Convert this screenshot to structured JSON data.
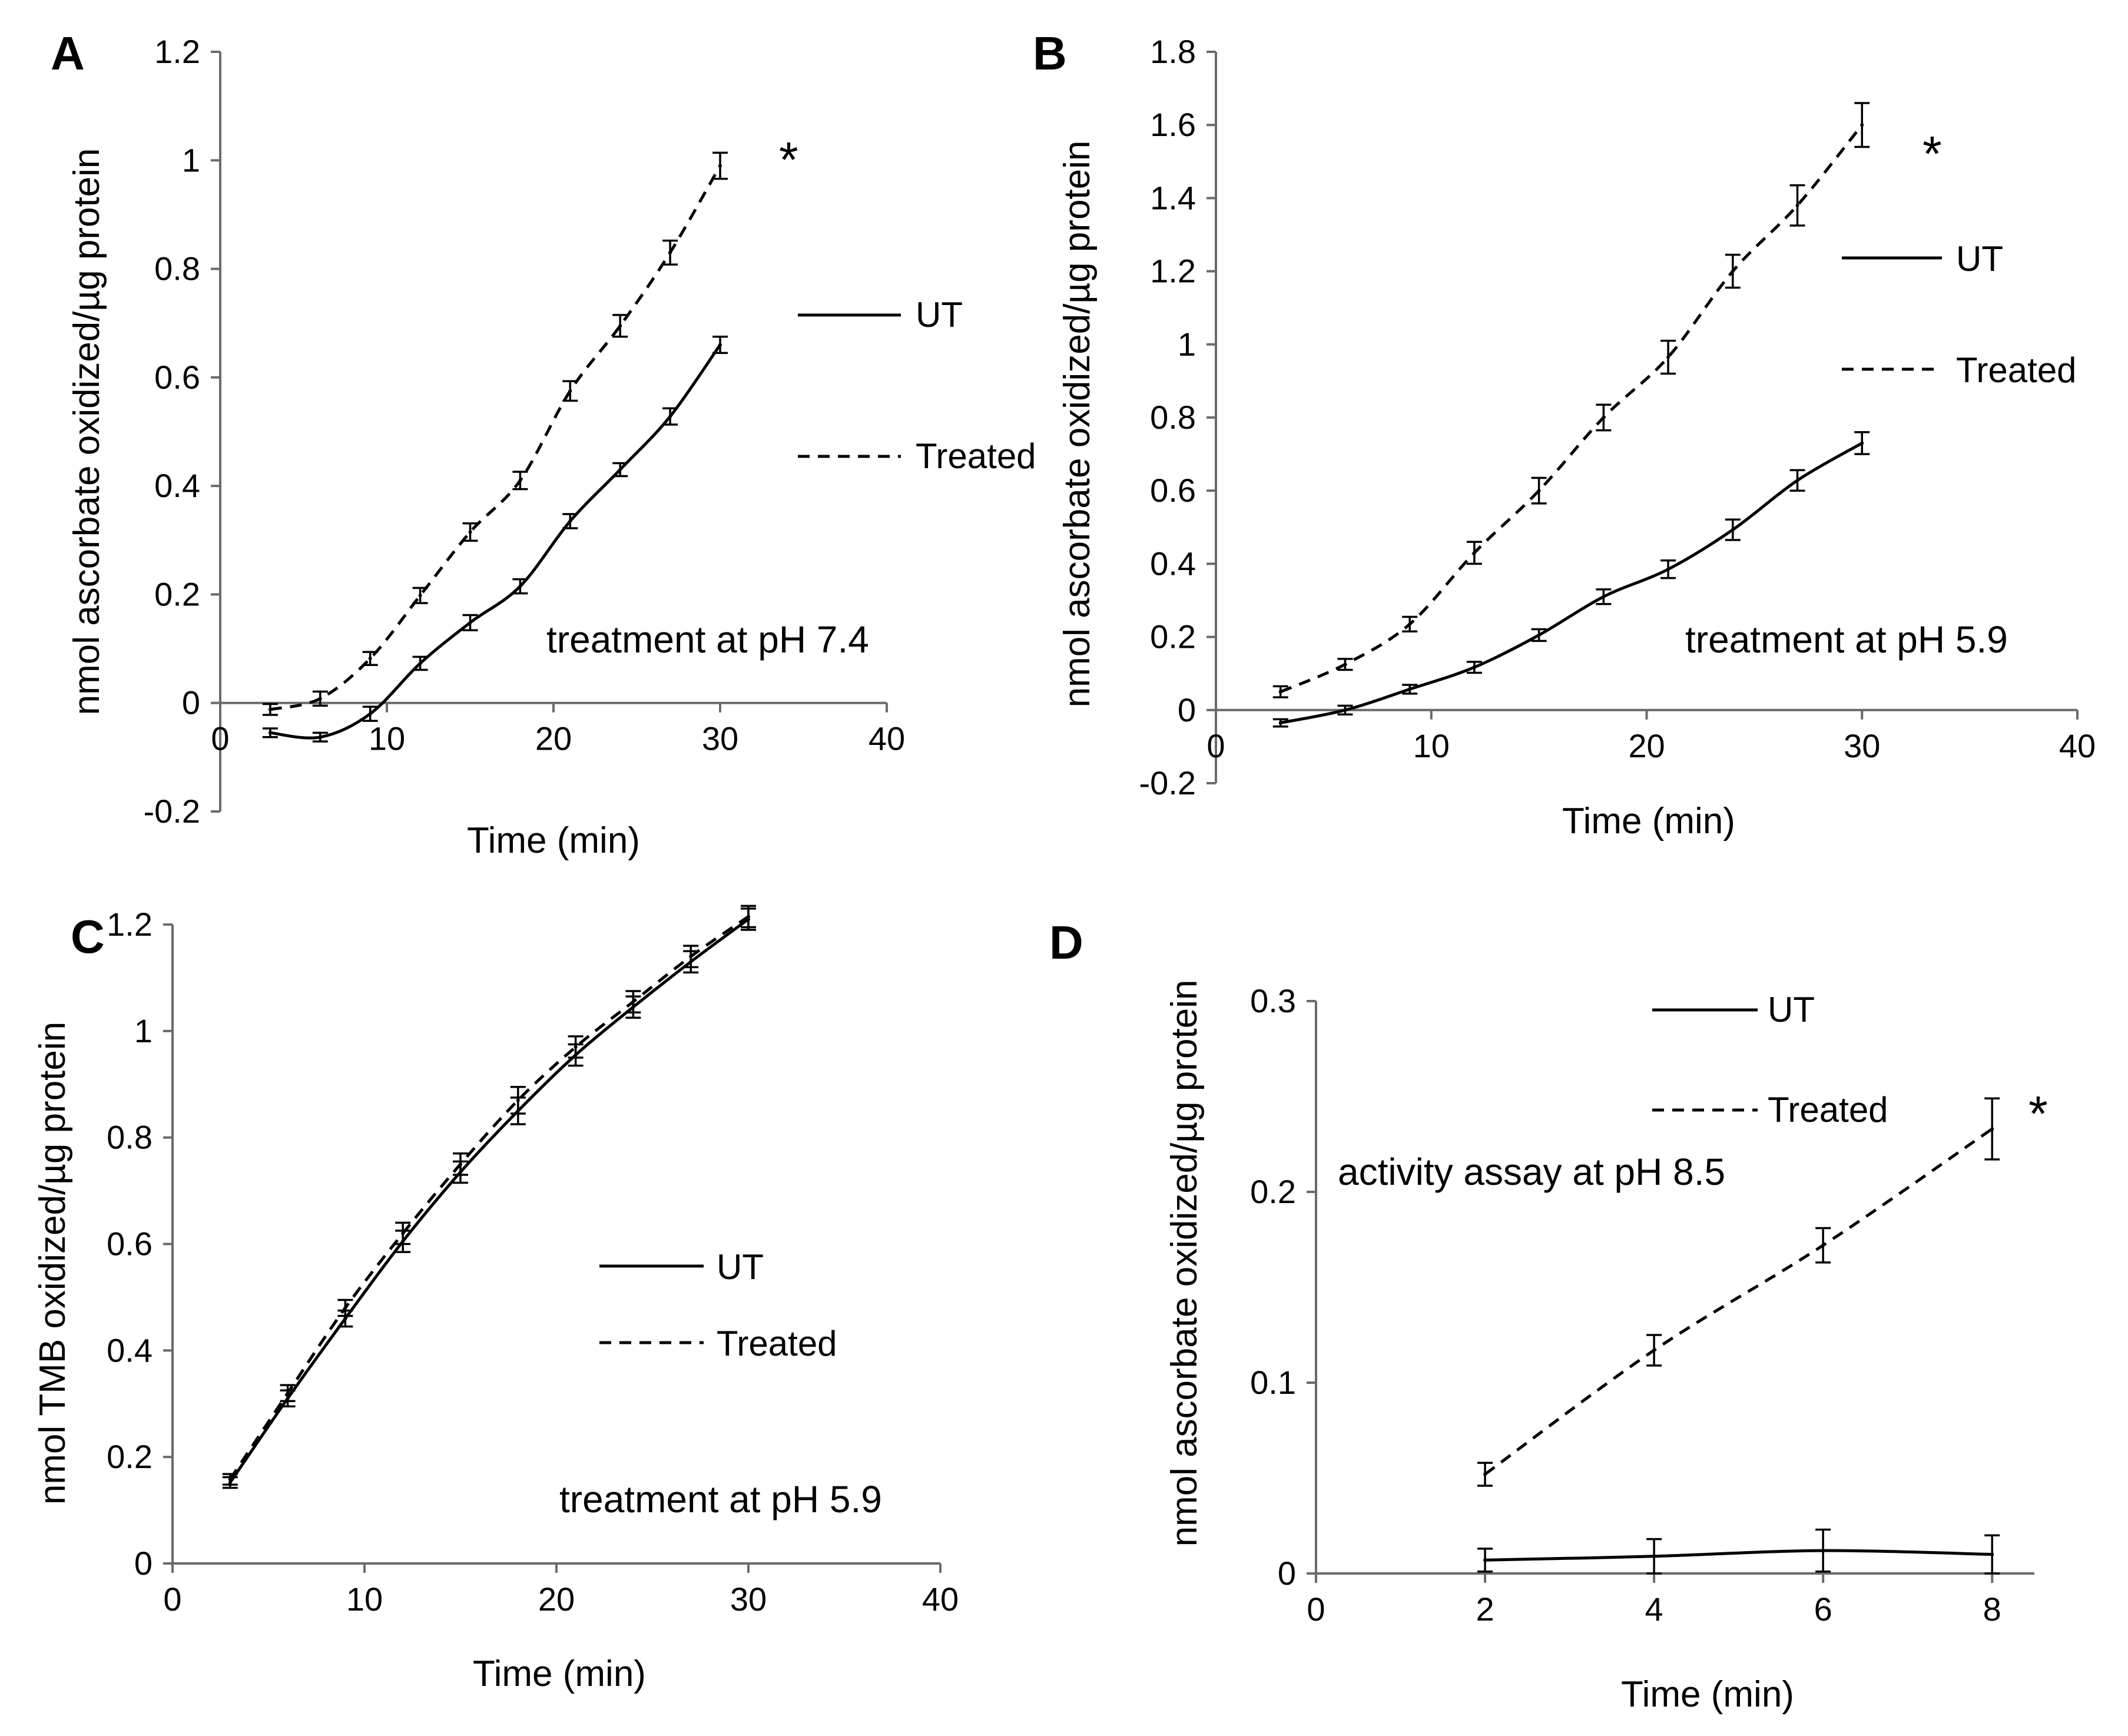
{
  "chart_data": [
    {
      "panel": "A",
      "type": "line",
      "xlabel": "Time (min)",
      "ylabel": "nmol ascorbate oxidized/µg protein",
      "xlim": [
        0,
        40
      ],
      "ylim": [
        -0.2,
        1.2
      ],
      "xticks": [
        "0",
        "10",
        "20",
        "30",
        "40"
      ],
      "yticks": [
        "-0.2",
        "0",
        "0.2",
        "0.4",
        "0.6",
        "0.8",
        "1",
        "1.2"
      ],
      "x": [
        3,
        6,
        9,
        12,
        15,
        18,
        21,
        24,
        27,
        30
      ],
      "series": [
        {
          "name": "UT",
          "style": "solid",
          "values": [
            -0.055,
            -0.063,
            -0.02,
            0.073,
            0.148,
            0.215,
            0.335,
            0.43,
            0.528,
            0.66
          ],
          "errors": [
            0.008,
            0.008,
            0.013,
            0.012,
            0.014,
            0.013,
            0.013,
            0.012,
            0.015,
            0.015
          ]
        },
        {
          "name": "Treated",
          "style": "dashed",
          "values": [
            -0.012,
            0.008,
            0.082,
            0.198,
            0.315,
            0.41,
            0.575,
            0.695,
            0.83,
            0.99
          ],
          "errors": [
            0.01,
            0.013,
            0.012,
            0.014,
            0.016,
            0.016,
            0.018,
            0.02,
            0.022,
            0.024
          ]
        }
      ],
      "legend": [
        "UT",
        "Treated"
      ],
      "annotation": "treatment at pH 7.4",
      "significance": "*"
    },
    {
      "panel": "B",
      "type": "line",
      "xlabel": "Time (min)",
      "ylabel": "nmol ascorbate oxidized/µg protein",
      "xlim": [
        0,
        40
      ],
      "ylim": [
        -0.2,
        1.8
      ],
      "xticks": [
        "0",
        "10",
        "20",
        "30",
        "40"
      ],
      "yticks": [
        "-0.2",
        "0",
        "0.2",
        "0.4",
        "0.6",
        "0.8",
        "1",
        "1.2",
        "1.4",
        "1.6",
        "1.8"
      ],
      "x": [
        3,
        6,
        9,
        12,
        15,
        18,
        21,
        24,
        27,
        30
      ],
      "series": [
        {
          "name": "UT",
          "style": "solid",
          "values": [
            -0.035,
            0.0,
            0.057,
            0.117,
            0.205,
            0.31,
            0.385,
            0.493,
            0.628,
            0.73
          ],
          "errors": [
            0.01,
            0.012,
            0.012,
            0.015,
            0.016,
            0.02,
            0.024,
            0.028,
            0.028,
            0.03
          ]
        },
        {
          "name": "Treated",
          "style": "dashed",
          "values": [
            0.05,
            0.125,
            0.235,
            0.43,
            0.6,
            0.8,
            0.965,
            1.2,
            1.38,
            1.6
          ],
          "errors": [
            0.015,
            0.015,
            0.02,
            0.03,
            0.035,
            0.035,
            0.045,
            0.045,
            0.055,
            0.06
          ]
        }
      ],
      "legend": [
        "UT",
        "Treated"
      ],
      "annotation": "treatment at pH 5.9",
      "significance": "*"
    },
    {
      "panel": "C",
      "type": "line",
      "xlabel": "Time (min)",
      "ylabel": "nmol TMB oxidized/µg protein",
      "xlim": [
        0,
        40
      ],
      "ylim": [
        0,
        1.2
      ],
      "xticks": [
        "0",
        "10",
        "20",
        "30",
        "40"
      ],
      "yticks": [
        "0",
        "0.2",
        "0.4",
        "0.6",
        "0.8",
        "1",
        "1.2"
      ],
      "x": [
        3,
        6,
        9,
        12,
        15,
        18,
        21,
        24,
        27,
        30
      ],
      "series": [
        {
          "name": "UT",
          "style": "solid",
          "values": [
            0.152,
            0.31,
            0.46,
            0.605,
            0.735,
            0.85,
            0.955,
            1.045,
            1.13,
            1.21
          ],
          "errors": [
            0.01,
            0.015,
            0.015,
            0.02,
            0.02,
            0.025,
            0.02,
            0.02,
            0.02,
            0.02
          ]
        },
        {
          "name": "Treated",
          "style": "dashed",
          "values": [
            0.158,
            0.32,
            0.48,
            0.62,
            0.75,
            0.87,
            0.97,
            1.055,
            1.14,
            1.215
          ],
          "errors": [
            0.01,
            0.015,
            0.015,
            0.02,
            0.02,
            0.025,
            0.02,
            0.02,
            0.02,
            0.02
          ]
        }
      ],
      "legend": [
        "UT",
        "Treated"
      ],
      "annotation": "treatment at pH 5.9"
    },
    {
      "panel": "D",
      "type": "line",
      "xlabel": "Time (min)",
      "ylabel": "nmol ascorbate oxidized/µg protein",
      "xlim": [
        0,
        8.5
      ],
      "ylim": [
        0,
        0.3
      ],
      "xticks": [
        "0",
        "2",
        "4",
        "6",
        "8"
      ],
      "yticks": [
        "0",
        "0.1",
        "0.2",
        "0.3"
      ],
      "x": [
        2,
        4,
        6,
        8
      ],
      "series": [
        {
          "name": "UT",
          "style": "solid",
          "values": [
            0.007,
            0.009,
            0.012,
            0.01
          ],
          "errors": [
            0.006,
            0.009,
            0.011,
            0.01
          ]
        },
        {
          "name": "Treated",
          "style": "dashed",
          "values": [
            0.052,
            0.117,
            0.172,
            0.233
          ],
          "errors": [
            0.006,
            0.008,
            0.009,
            0.016
          ]
        }
      ],
      "legend": [
        "UT",
        "Treated"
      ],
      "annotation": "activity assay at pH 8.5",
      "significance": "*"
    }
  ]
}
